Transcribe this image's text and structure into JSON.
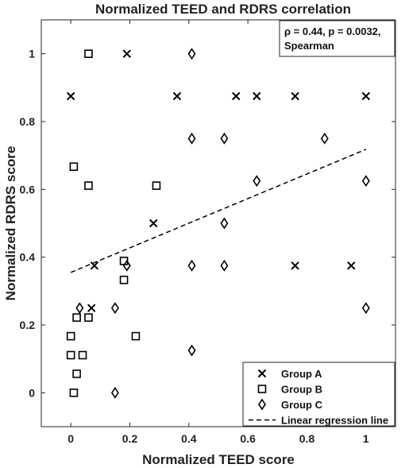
{
  "chart_data": {
    "type": "scatter",
    "title": "Normalized TEED and RDRS correlation",
    "xlabel": "Normalized TEED score",
    "ylabel": "Normalized RDRS score",
    "xlim": [
      -0.1,
      1.1
    ],
    "ylim": [
      -0.1,
      1.1
    ],
    "xticks": [
      0,
      0.2,
      0.4,
      0.6,
      0.8,
      1
    ],
    "xtick_labels": [
      "0",
      "0.2",
      "0.4",
      "0.6",
      "0.8",
      "1"
    ],
    "yticks": [
      0,
      0.2,
      0.4,
      0.6,
      0.8,
      1
    ],
    "ytick_labels": [
      "0",
      "0.2",
      "0.4",
      "0.6",
      "0.8",
      "1"
    ],
    "grid": false,
    "legend_position": "bottom-right",
    "annotation_lines": [
      "ρ = 0.44, p = 0.0032,",
      "Spearman"
    ],
    "series": [
      {
        "name": "Group A",
        "marker": "x",
        "points": [
          [
            0.0,
            0.875
          ],
          [
            0.19,
            1.0
          ],
          [
            0.36,
            0.875
          ],
          [
            0.56,
            0.875
          ],
          [
            0.63,
            0.875
          ],
          [
            0.76,
            0.875
          ],
          [
            1.0,
            0.875
          ],
          [
            0.28,
            0.5
          ],
          [
            0.08,
            0.375
          ],
          [
            0.07,
            0.25
          ],
          [
            0.76,
            0.375
          ],
          [
            0.95,
            0.375
          ]
        ]
      },
      {
        "name": "Group B",
        "marker": "square",
        "points": [
          [
            0.06,
            1.0
          ],
          [
            0.01,
            0.667
          ],
          [
            0.06,
            0.611
          ],
          [
            0.29,
            0.611
          ],
          [
            0.18,
            0.389
          ],
          [
            0.18,
            0.333
          ],
          [
            0.02,
            0.222
          ],
          [
            0.06,
            0.222
          ],
          [
            0.0,
            0.167
          ],
          [
            0.22,
            0.167
          ],
          [
            0.0,
            0.111
          ],
          [
            0.04,
            0.111
          ],
          [
            0.02,
            0.056
          ],
          [
            0.01,
            0.0
          ]
        ]
      },
      {
        "name": "Group C",
        "marker": "diamond",
        "points": [
          [
            0.41,
            1.0
          ],
          [
            0.41,
            0.75
          ],
          [
            0.52,
            0.75
          ],
          [
            0.86,
            0.75
          ],
          [
            0.63,
            0.625
          ],
          [
            1.0,
            0.625
          ],
          [
            0.52,
            0.5
          ],
          [
            0.19,
            0.375
          ],
          [
            0.41,
            0.375
          ],
          [
            0.52,
            0.375
          ],
          [
            0.03,
            0.25
          ],
          [
            0.15,
            0.25
          ],
          [
            1.0,
            0.25
          ],
          [
            0.41,
            0.125
          ],
          [
            0.15,
            0.0
          ]
        ]
      }
    ],
    "regression": {
      "name": "Linear regression line",
      "style": "dashed",
      "start": [
        0.0,
        0.355
      ],
      "end": [
        1.0,
        0.718
      ]
    },
    "colors": {
      "markers": "#000000",
      "axes": "#262626",
      "text": "#222222"
    }
  }
}
